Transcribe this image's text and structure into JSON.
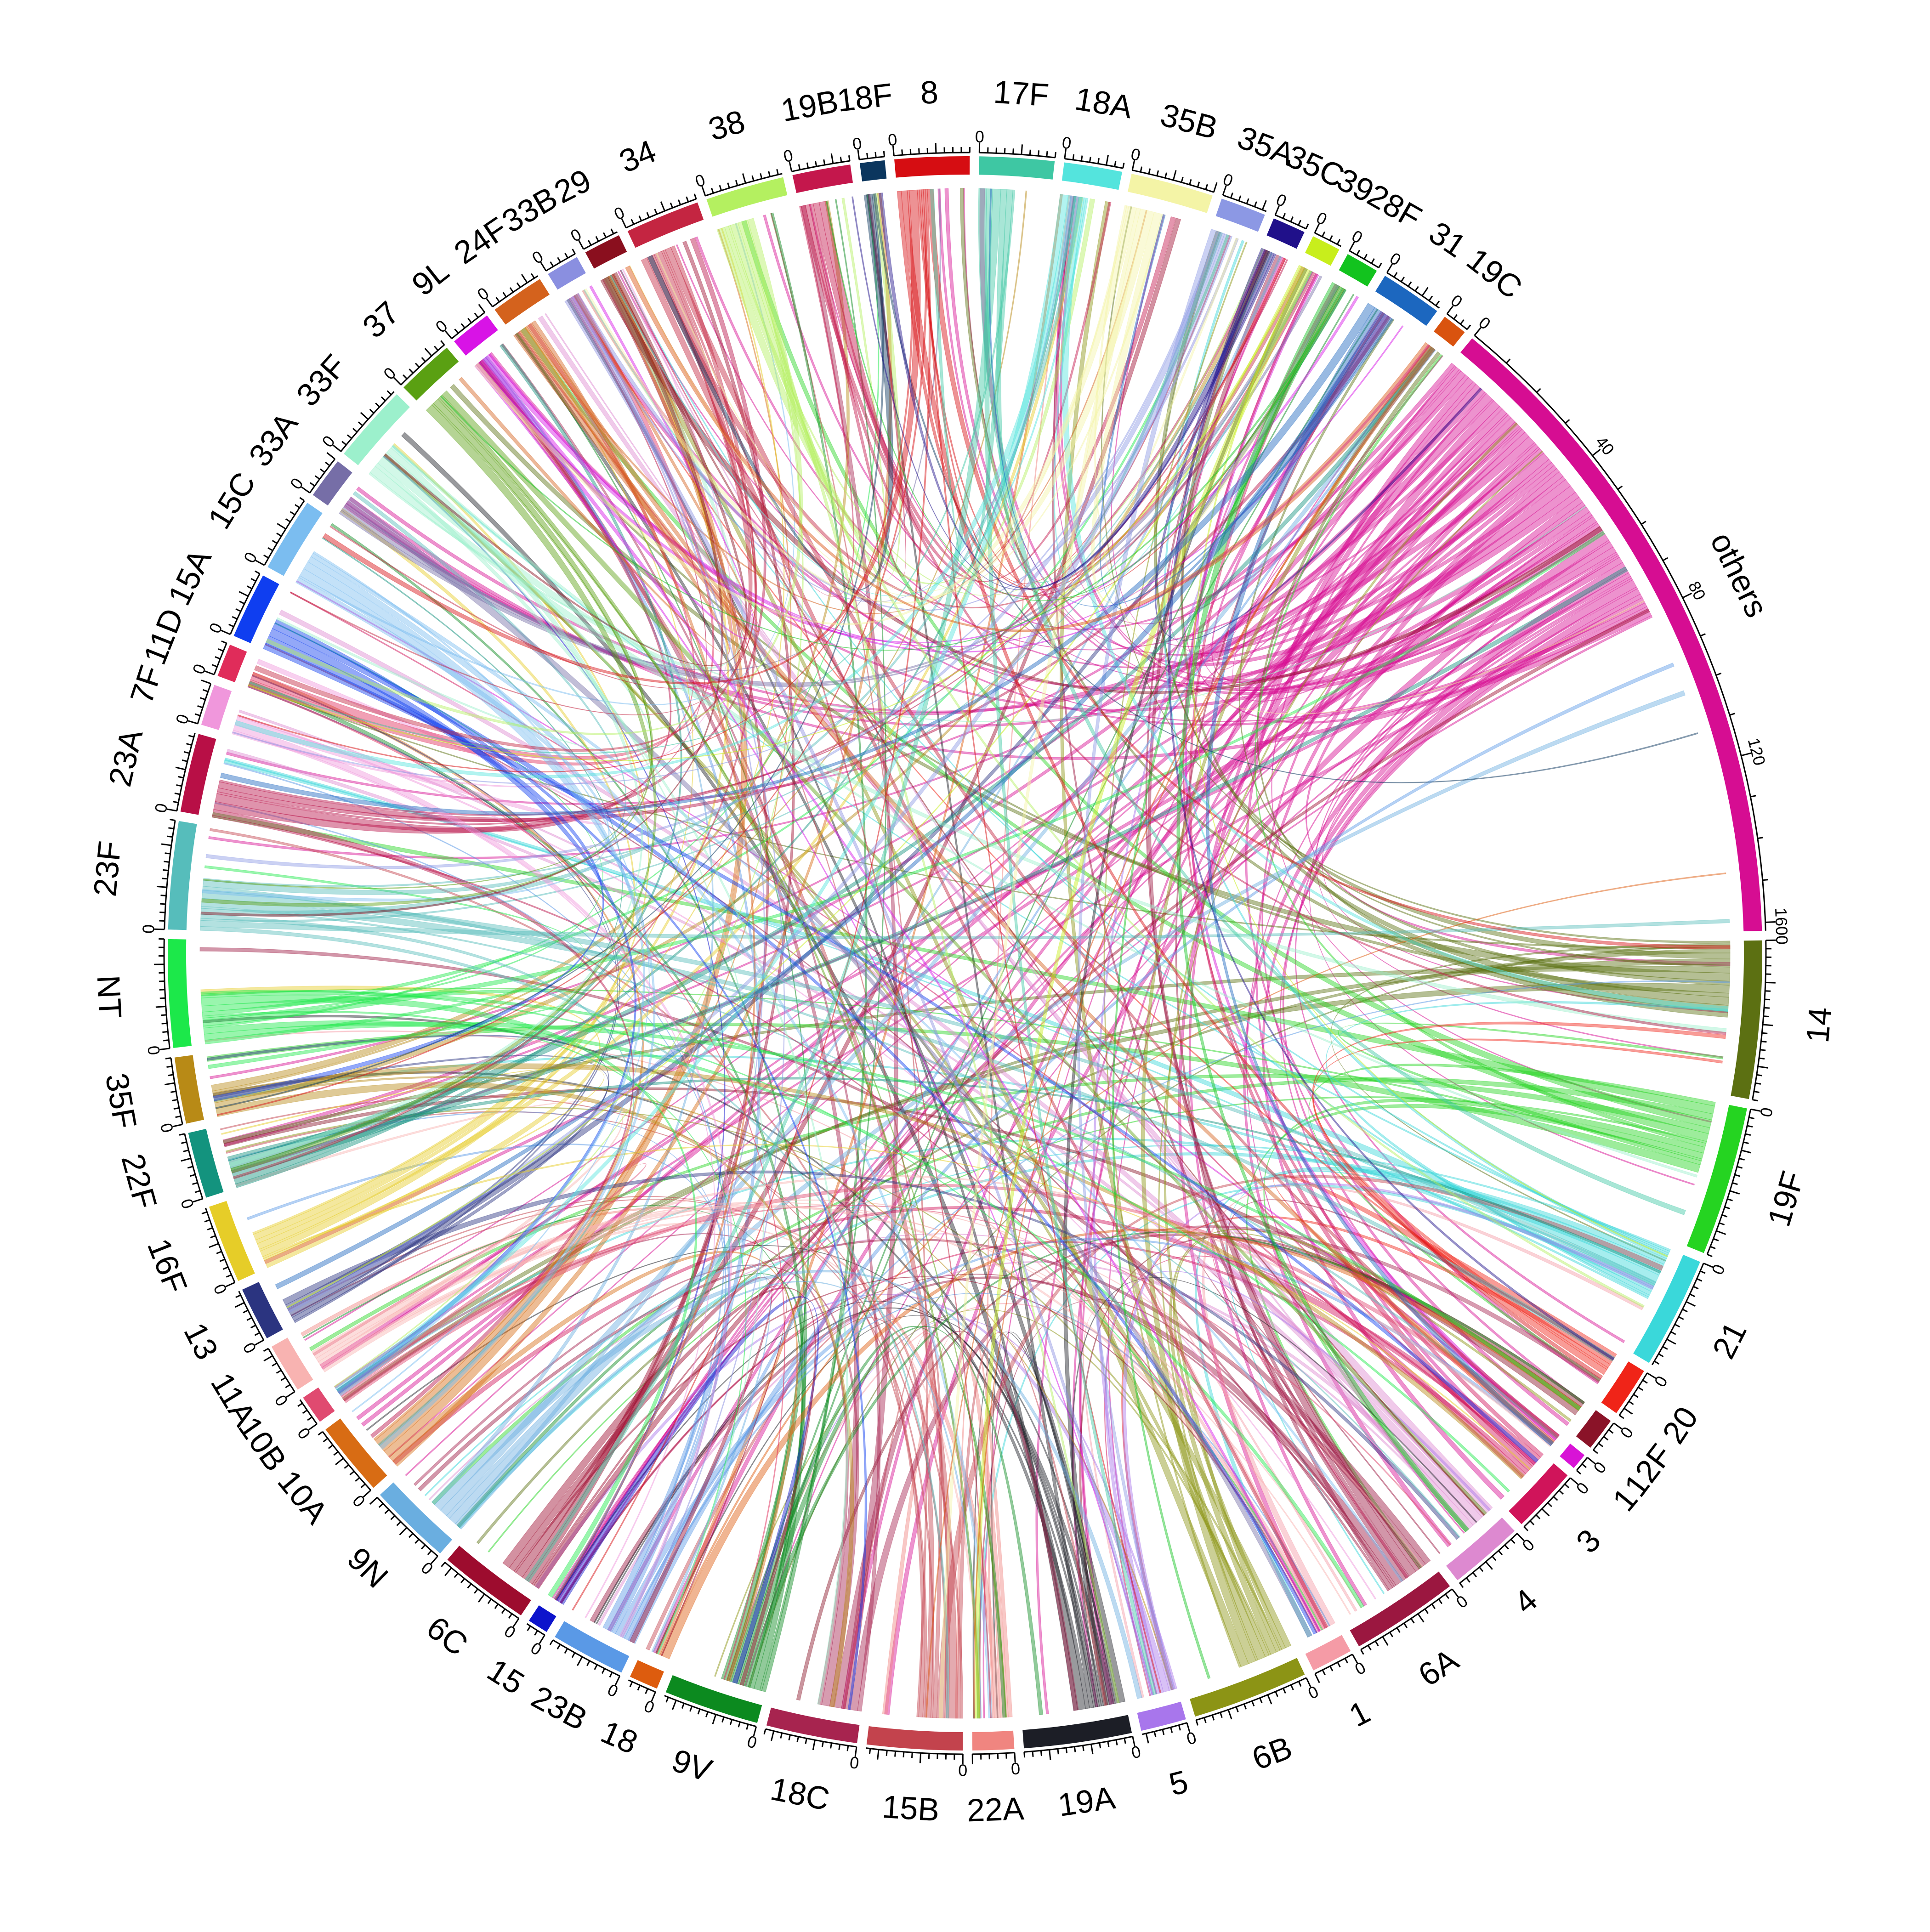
{
  "chart_data": {
    "type": "chord",
    "title": "",
    "sectors": [
      {
        "name": "others",
        "value": 162,
        "color": "#d60d92"
      },
      {
        "name": "14",
        "value": 38,
        "color": "#5c7012"
      },
      {
        "name": "19F",
        "value": 36,
        "color": "#25d421"
      },
      {
        "name": "21",
        "value": 27,
        "color": "#3ad8da"
      },
      {
        "name": "20",
        "value": 12,
        "color": "#f02418"
      },
      {
        "name": "12F",
        "value": 8,
        "color": "#8a1328"
      },
      {
        "name": "1",
        "value": 4,
        "color": "#d813d6"
      },
      {
        "name": "3",
        "value": 16,
        "color": "#d0145a"
      },
      {
        "name": "4",
        "value": 18,
        "color": "#dd89d0"
      },
      {
        "name": "6A",
        "value": 26,
        "color": "#9b1740"
      },
      {
        "name": "1",
        "value": 10,
        "color": "#f59ba6"
      },
      {
        "name": "6B",
        "value": 28,
        "color": "#8c9415"
      },
      {
        "name": "5",
        "value": 11,
        "color": "#a876ec"
      },
      {
        "name": "19A",
        "value": 26,
        "color": "#1c1e26"
      },
      {
        "name": "22A",
        "value": 10,
        "color": "#f08580"
      },
      {
        "name": "15B",
        "value": 23,
        "color": "#c3434d"
      },
      {
        "name": "18C",
        "value": 22,
        "color": "#a7244f"
      },
      {
        "name": "9V",
        "value": 23,
        "color": "#0c8a1f"
      },
      {
        "name": "18",
        "value": 7,
        "color": "#dd5c0e"
      },
      {
        "name": "23B",
        "value": 18,
        "color": "#5a99e6"
      },
      {
        "name": "15",
        "value": 5,
        "color": "#0d14cc"
      },
      {
        "name": "6C",
        "value": 22,
        "color": "#9d0c2e"
      },
      {
        "name": "9N",
        "value": 20,
        "color": "#6aaee0"
      },
      {
        "name": "10A",
        "value": 18,
        "color": "#d86c14"
      },
      {
        "name": "10B",
        "value": 7,
        "color": "#e04a70"
      },
      {
        "name": "11A",
        "value": 12,
        "color": "#f8b3b1"
      },
      {
        "name": "13",
        "value": 13,
        "color": "#2b3480"
      },
      {
        "name": "16F",
        "value": 19,
        "color": "#e6cd28"
      },
      {
        "name": "22F",
        "value": 16,
        "color": "#13937e"
      },
      {
        "name": "35F",
        "value": 16,
        "color": "#b88a16"
      },
      {
        "name": "NT",
        "value": 26,
        "color": "#1ce84a"
      },
      {
        "name": "23F",
        "value": 26,
        "color": "#56bdbb"
      },
      {
        "name": "23A",
        "value": 19,
        "color": "#b80f46"
      },
      {
        "name": "7F",
        "value": 10,
        "color": "#f097dc"
      },
      {
        "name": "11D",
        "value": 8,
        "color": "#e02c5a"
      },
      {
        "name": "15A",
        "value": 16,
        "color": "#0f3ef0"
      },
      {
        "name": "15C",
        "value": 18,
        "color": "#7bbdf0"
      },
      {
        "name": "33A",
        "value": 10,
        "color": "#766ea7"
      },
      {
        "name": "33F",
        "value": 19,
        "color": "#9cf0cc"
      },
      {
        "name": "37",
        "value": 14,
        "color": "#5aa012"
      },
      {
        "name": "9L",
        "value": 10,
        "color": "#d813e6"
      },
      {
        "name": "24F",
        "value": 13,
        "color": "#d4621d"
      },
      {
        "name": "33B",
        "value": 8,
        "color": "#8a8fe0"
      },
      {
        "name": "29",
        "value": 9,
        "color": "#8a0f1e"
      },
      {
        "name": "34",
        "value": 18,
        "color": "#c42541"
      },
      {
        "name": "38",
        "value": 19,
        "color": "#b4f060"
      },
      {
        "name": "19B",
        "value": 14,
        "color": "#c4174c"
      },
      {
        "name": "18F",
        "value": 6,
        "color": "#0b365e"
      },
      {
        "name": "8",
        "value": 18,
        "color": "#d60d12"
      },
      {
        "name": "17F",
        "value": 18,
        "color": "#3ec7a3"
      },
      {
        "name": "18A",
        "value": 14,
        "color": "#54e4dd"
      },
      {
        "name": "35B",
        "value": 20,
        "color": "#f4f4a6"
      },
      {
        "name": "35A",
        "value": 11,
        "color": "#8c98e4"
      },
      {
        "name": "35C",
        "value": 8,
        "color": "#20108a"
      },
      {
        "name": "39",
        "value": 7,
        "color": "#c8ee1c"
      },
      {
        "name": "28F",
        "value": 8,
        "color": "#12c31e"
      },
      {
        "name": "31",
        "value": 15,
        "color": "#1c67bf"
      },
      {
        "name": "19C",
        "value": 6,
        "color": "#d9530f"
      }
    ],
    "axis_ticks_others": [
      0,
      40,
      80,
      120,
      160
    ],
    "tick_zero_label": "0",
    "others_label": "others"
  }
}
